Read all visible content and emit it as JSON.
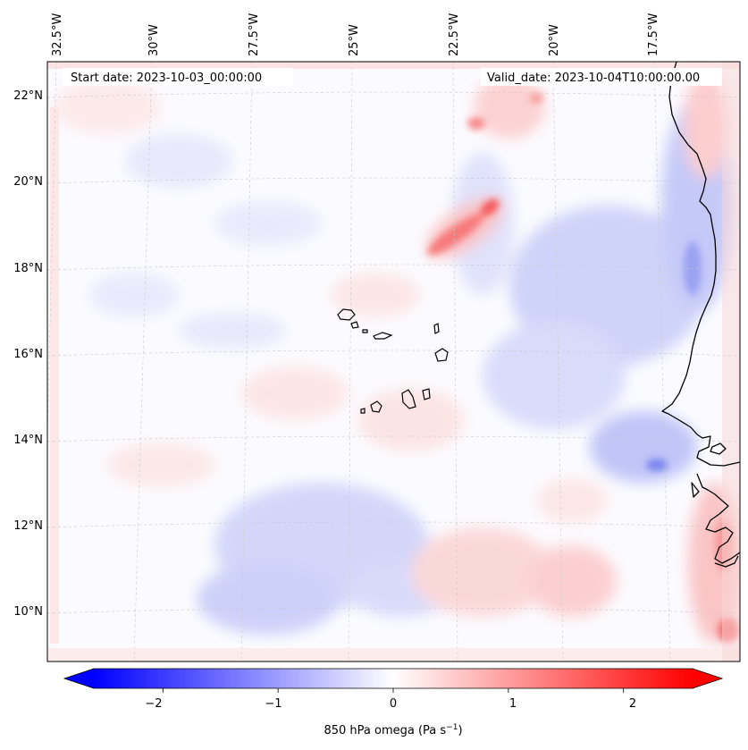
{
  "map": {
    "start_label": "Start date: 2023-10-03_00:00:00",
    "valid_label": "Valid_date: 2023-10-04T10:00:00.00",
    "lon_labels": [
      "32.5°W",
      "30°W",
      "27.5°W",
      "25°W",
      "22.5°W",
      "20°W",
      "17.5°W"
    ],
    "lat_labels": [
      "22°N",
      "20°N",
      "18°N",
      "16°N",
      "14°N",
      "12°N",
      "10°N"
    ],
    "coastline_color": "#000000",
    "gridline_style": "dashed"
  },
  "colorbar": {
    "label_prefix": "850 hPa omega (Pa s",
    "label_exp": "−1",
    "label_suffix": ")",
    "ticks": [
      "−2",
      "−1",
      "0",
      "1",
      "2"
    ],
    "range": [
      -2.6,
      2.6
    ],
    "colormap": "bwr",
    "neg_color": "#0000ff",
    "mid_color": "#ffffff",
    "pos_color": "#ff0000"
  }
}
